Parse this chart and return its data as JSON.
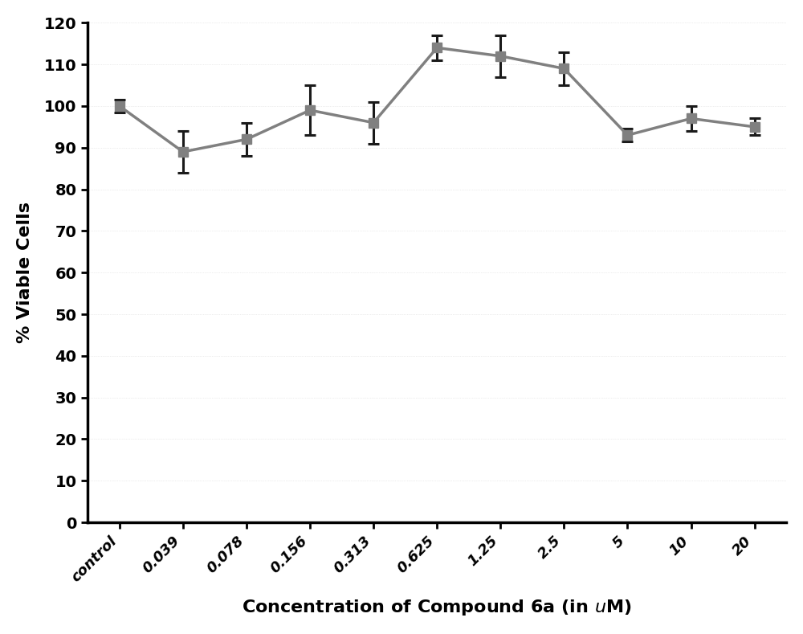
{
  "x_labels": [
    "control",
    "0.039",
    "0.078",
    "0.156",
    "0.313",
    "0.625",
    "1.25",
    "2.5",
    "5",
    "10",
    "20"
  ],
  "y_values": [
    100,
    89,
    92,
    99,
    96,
    114,
    112,
    109,
    93,
    97,
    95
  ],
  "y_errors": [
    1.5,
    5,
    4,
    6,
    5,
    3,
    5,
    4,
    1.5,
    3,
    2
  ],
  "xlabel_parts": [
    "Concentration of Compound 6a (in ",
    "u",
    "M)"
  ],
  "ylabel": "% Viable Cells",
  "ylim": [
    0,
    120
  ],
  "yticks": [
    0,
    10,
    20,
    30,
    40,
    50,
    60,
    70,
    80,
    90,
    100,
    110,
    120
  ],
  "line_color": "#808080",
  "marker_color": "#808080",
  "error_color": "#1a1a1a",
  "marker": "s",
  "marker_size": 9,
  "line_width": 2.5,
  "xlabel_fontsize": 16,
  "ylabel_fontsize": 16,
  "tick_fontsize": 14,
  "xtick_fontsize": 13,
  "background_color": "#ffffff"
}
